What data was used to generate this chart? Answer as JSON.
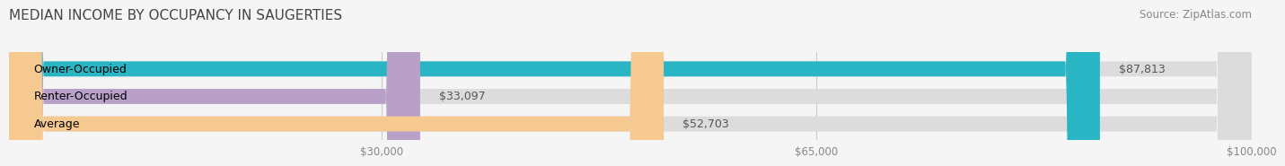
{
  "title": "MEDIAN INCOME BY OCCUPANCY IN SAUGERTIES",
  "source": "Source: ZipAtlas.com",
  "categories": [
    "Owner-Occupied",
    "Renter-Occupied",
    "Average"
  ],
  "values": [
    87813,
    33097,
    52703
  ],
  "labels": [
    "$87,813",
    "$33,097",
    "$52,703"
  ],
  "bar_colors": [
    "#29b5c3",
    "#b8a0c8",
    "#f5c990"
  ],
  "xlim": [
    0,
    100000
  ],
  "xticks": [
    30000,
    65000,
    100000
  ],
  "xticklabels": [
    "$30,000",
    "$65,000",
    "$100,000"
  ],
  "title_fontsize": 11,
  "label_fontsize": 9,
  "tick_fontsize": 8.5,
  "source_fontsize": 8.5,
  "background_color": "#f5f5f5",
  "bar_height": 0.55
}
